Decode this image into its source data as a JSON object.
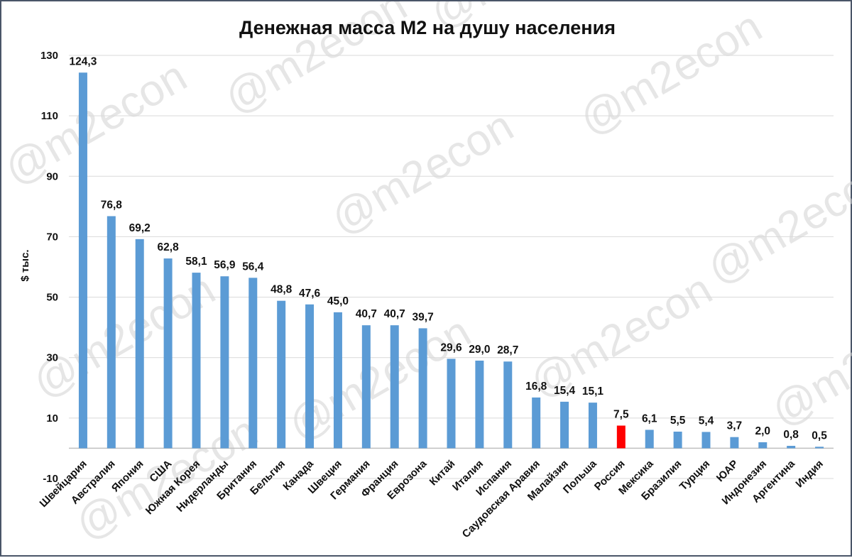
{
  "chart_data": {
    "type": "bar",
    "title": "Денежная масса М2 на душу населения",
    "ylabel": "$ тыс.",
    "xlabel": "",
    "ylim": [
      -10,
      130
    ],
    "yticks": [
      -10,
      10,
      30,
      50,
      70,
      90,
      110,
      130
    ],
    "grid": true,
    "legend": "none",
    "watermark": "@m2econ",
    "colors": {
      "bar": "#5b9bd5",
      "highlight": "#ff0000",
      "grid": "#d9d9d9"
    },
    "highlight_category": "Россия",
    "categories": [
      "Швейцария",
      "Австралия",
      "Япония",
      "США",
      "Южная Корея",
      "Нидерланды",
      "Британия",
      "Бельгия",
      "Канада",
      "Швеция",
      "Германия",
      "Франция",
      "Еврозона",
      "Китай",
      "Италия",
      "Испания",
      "Саудовская Аравия",
      "Малайзия",
      "Польша",
      "Россия",
      "Мексика",
      "Бразилия",
      "Турция",
      "ЮАР",
      "Индонезия",
      "Аргентина",
      "Индия"
    ],
    "values": [
      124.3,
      76.8,
      69.2,
      62.8,
      58.1,
      56.9,
      56.4,
      48.8,
      47.6,
      45.0,
      40.7,
      40.7,
      39.7,
      29.6,
      29.0,
      28.7,
      16.8,
      15.4,
      15.1,
      7.5,
      6.1,
      5.5,
      5.4,
      3.7,
      2.0,
      0.8,
      0.5
    ],
    "value_labels": [
      "124,3",
      "76,8",
      "69,2",
      "62,8",
      "58,1",
      "56,9",
      "56,4",
      "48,8",
      "47,6",
      "45,0",
      "40,7",
      "40,7",
      "39,7",
      "29,6",
      "29,0",
      "28,7",
      "16,8",
      "15,4",
      "15,1",
      "7,5",
      "6,1",
      "5,5",
      "5,4",
      "3,7",
      "2,0",
      "0,8",
      "0,5"
    ]
  }
}
